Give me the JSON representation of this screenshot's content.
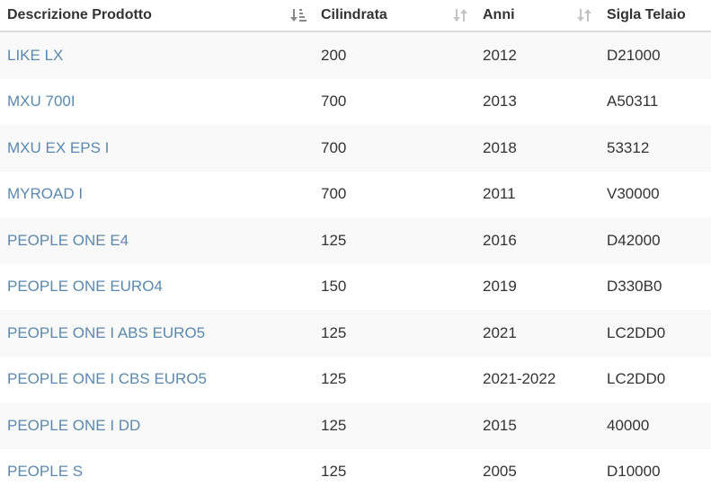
{
  "table": {
    "headers": [
      {
        "label": "Descrizione Prodotto",
        "sort_icon": "sort-active-icon"
      },
      {
        "label": "Cilindrata",
        "sort_icon": "sort-icon"
      },
      {
        "label": "Anni",
        "sort_icon": "sort-icon"
      },
      {
        "label": "Sigla Telaio",
        "sort_icon": "none"
      }
    ],
    "rows": [
      {
        "product": "LIKE LX",
        "cc": "200",
        "years": "2012",
        "frame": "D21000"
      },
      {
        "product": "MXU 700I",
        "cc": "700",
        "years": "2013",
        "frame": "A50311"
      },
      {
        "product": "MXU EX EPS I",
        "cc": "700",
        "years": "2018",
        "frame": "53312"
      },
      {
        "product": "MYROAD I",
        "cc": "700",
        "years": "2011",
        "frame": "V30000"
      },
      {
        "product": "PEOPLE ONE E4",
        "cc": "125",
        "years": "2016",
        "frame": "D42000"
      },
      {
        "product": "PEOPLE ONE EURO4",
        "cc": "150",
        "years": "2019",
        "frame": "D330B0"
      },
      {
        "product": "PEOPLE ONE I ABS EURO5",
        "cc": "125",
        "years": "2021",
        "frame": "LC2DD0"
      },
      {
        "product": "PEOPLE ONE I CBS EURO5",
        "cc": "125",
        "years": "2021-2022",
        "frame": "LC2DD0"
      },
      {
        "product": "PEOPLE ONE I DD",
        "cc": "125",
        "years": "2015",
        "frame": "40000"
      },
      {
        "product": "PEOPLE S",
        "cc": "125",
        "years": "2005",
        "frame": "D10000"
      }
    ]
  },
  "colors": {
    "link": "#5b89ad",
    "text": "#333333",
    "stripe": "#f9f9f9",
    "header_border": "#dddddd",
    "sort_icon": "#b0b0b0",
    "sort_icon_active": "#888888"
  }
}
